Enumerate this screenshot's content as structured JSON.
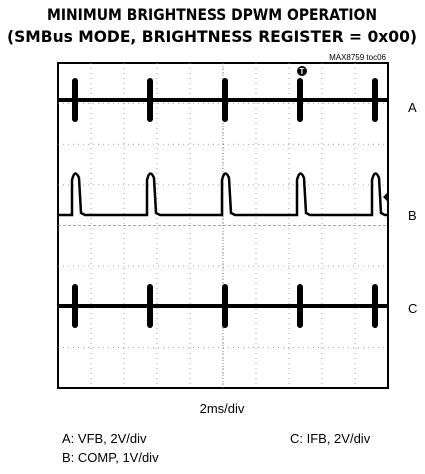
{
  "header": {
    "title_line1": "MINIMUM BRIGHTNESS DPWM OPERATION",
    "title_line2": "(SMBus MODE, BRIGHTNESS REGISTER = 0x00)",
    "figure_id": "MAX8759 toc06"
  },
  "scope": {
    "channel_labels": [
      "A",
      "B",
      "C"
    ],
    "trigger_marker": "T",
    "timebase": "2ms/div"
  },
  "legend": {
    "a": "A: VFB, 2V/div",
    "b": "B: COMP, 1V/div",
    "c": "C: IFB, 2V/div"
  }
}
